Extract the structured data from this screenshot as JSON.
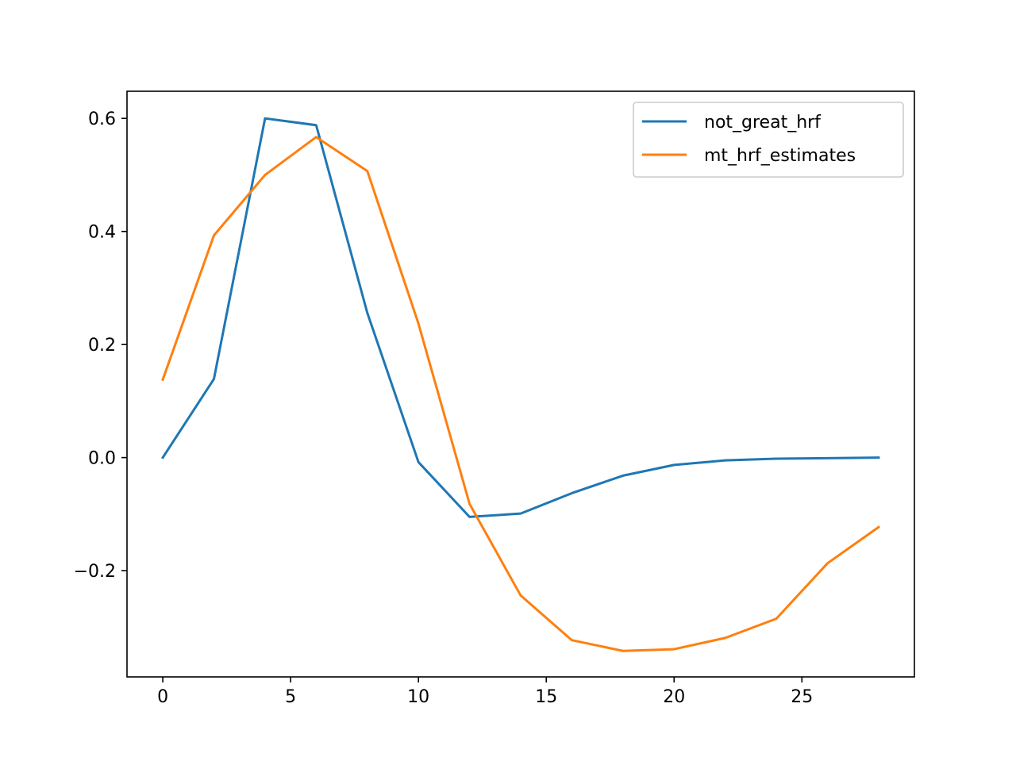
{
  "chart_data": {
    "type": "line",
    "title": "",
    "xlabel": "",
    "ylabel": "",
    "xlim": [
      -1.4,
      29.4
    ],
    "ylim": [
      -0.388,
      0.648
    ],
    "x_ticks": [
      0,
      5,
      10,
      15,
      20,
      25
    ],
    "x_tick_labels": [
      "0",
      "5",
      "10",
      "15",
      "20",
      "25"
    ],
    "y_ticks": [
      -0.2,
      0.0,
      0.2,
      0.4,
      0.6
    ],
    "y_tick_labels": [
      "−0.2",
      "0.0",
      "0.2",
      "0.4",
      "0.6"
    ],
    "grid": false,
    "legend": "top-right",
    "x": [
      0,
      2,
      4,
      6,
      8,
      10,
      12,
      14,
      16,
      18,
      20,
      22,
      24,
      26,
      28
    ],
    "series": [
      {
        "name": "not_great_hrf",
        "color": "#1f77b4",
        "values": [
          0.0,
          0.139,
          0.6,
          0.588,
          0.256,
          -0.008,
          -0.105,
          -0.099,
          -0.063,
          -0.032,
          -0.013,
          -0.005,
          -0.002,
          -0.001,
          0.0
        ]
      },
      {
        "name": "mt_hrf_estimates",
        "color": "#ff7f0e",
        "values": [
          0.138,
          0.393,
          0.5,
          0.567,
          0.507,
          0.237,
          -0.082,
          -0.244,
          -0.323,
          -0.342,
          -0.339,
          -0.319,
          -0.285,
          -0.187,
          -0.123
        ]
      }
    ]
  }
}
